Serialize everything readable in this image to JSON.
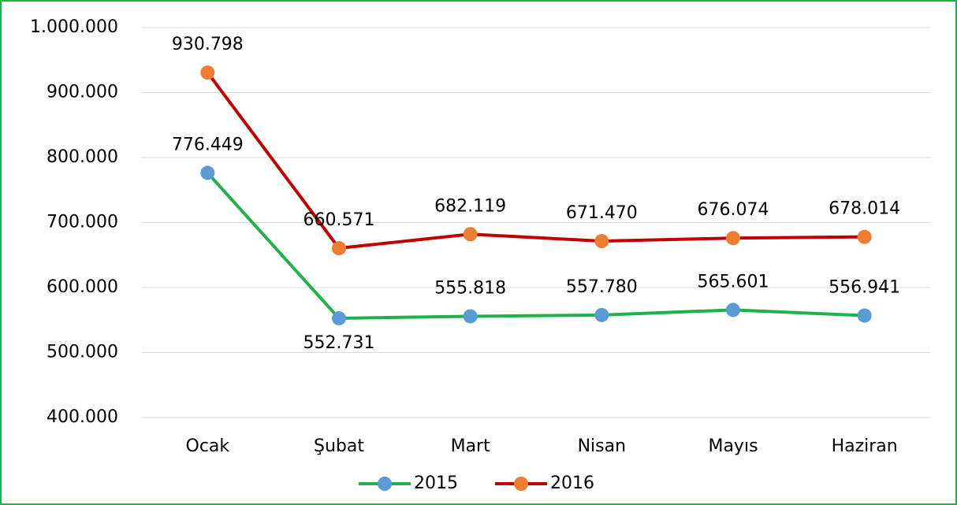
{
  "chart_data": {
    "type": "line",
    "categories": [
      "Ocak",
      "Şubat",
      "Mart",
      "Nisan",
      "Mayıs",
      "Haziran"
    ],
    "series": [
      {
        "name": "2015",
        "color": "#1fb24a",
        "marker_color": "#5b9bd5",
        "values": [
          776449,
          552731,
          555818,
          557780,
          565601,
          556941
        ],
        "value_labels": [
          "776.449",
          "552.731",
          "555.818",
          "557.780",
          "565.601",
          "556.941"
        ]
      },
      {
        "name": "2016",
        "color": "#c00000",
        "marker_color": "#ed7d31",
        "values": [
          930798,
          660571,
          682119,
          671470,
          676074,
          678014
        ],
        "value_labels": [
          "930.798",
          "660.571",
          "682.119",
          "671.470",
          "676.074",
          "678.014"
        ]
      }
    ],
    "ylim": [
      400000,
      1000000
    ],
    "yticks": [
      {
        "value": 400000,
        "label": "400.000"
      },
      {
        "value": 500000,
        "label": "500.000"
      },
      {
        "value": 600000,
        "label": "600.000"
      },
      {
        "value": 700000,
        "label": "700.000"
      },
      {
        "value": 800000,
        "label": "800.000"
      },
      {
        "value": 900000,
        "label": "900.000"
      },
      {
        "value": 1000000,
        "label": "1.000.000"
      }
    ],
    "grid": true,
    "legend": "bottom"
  }
}
